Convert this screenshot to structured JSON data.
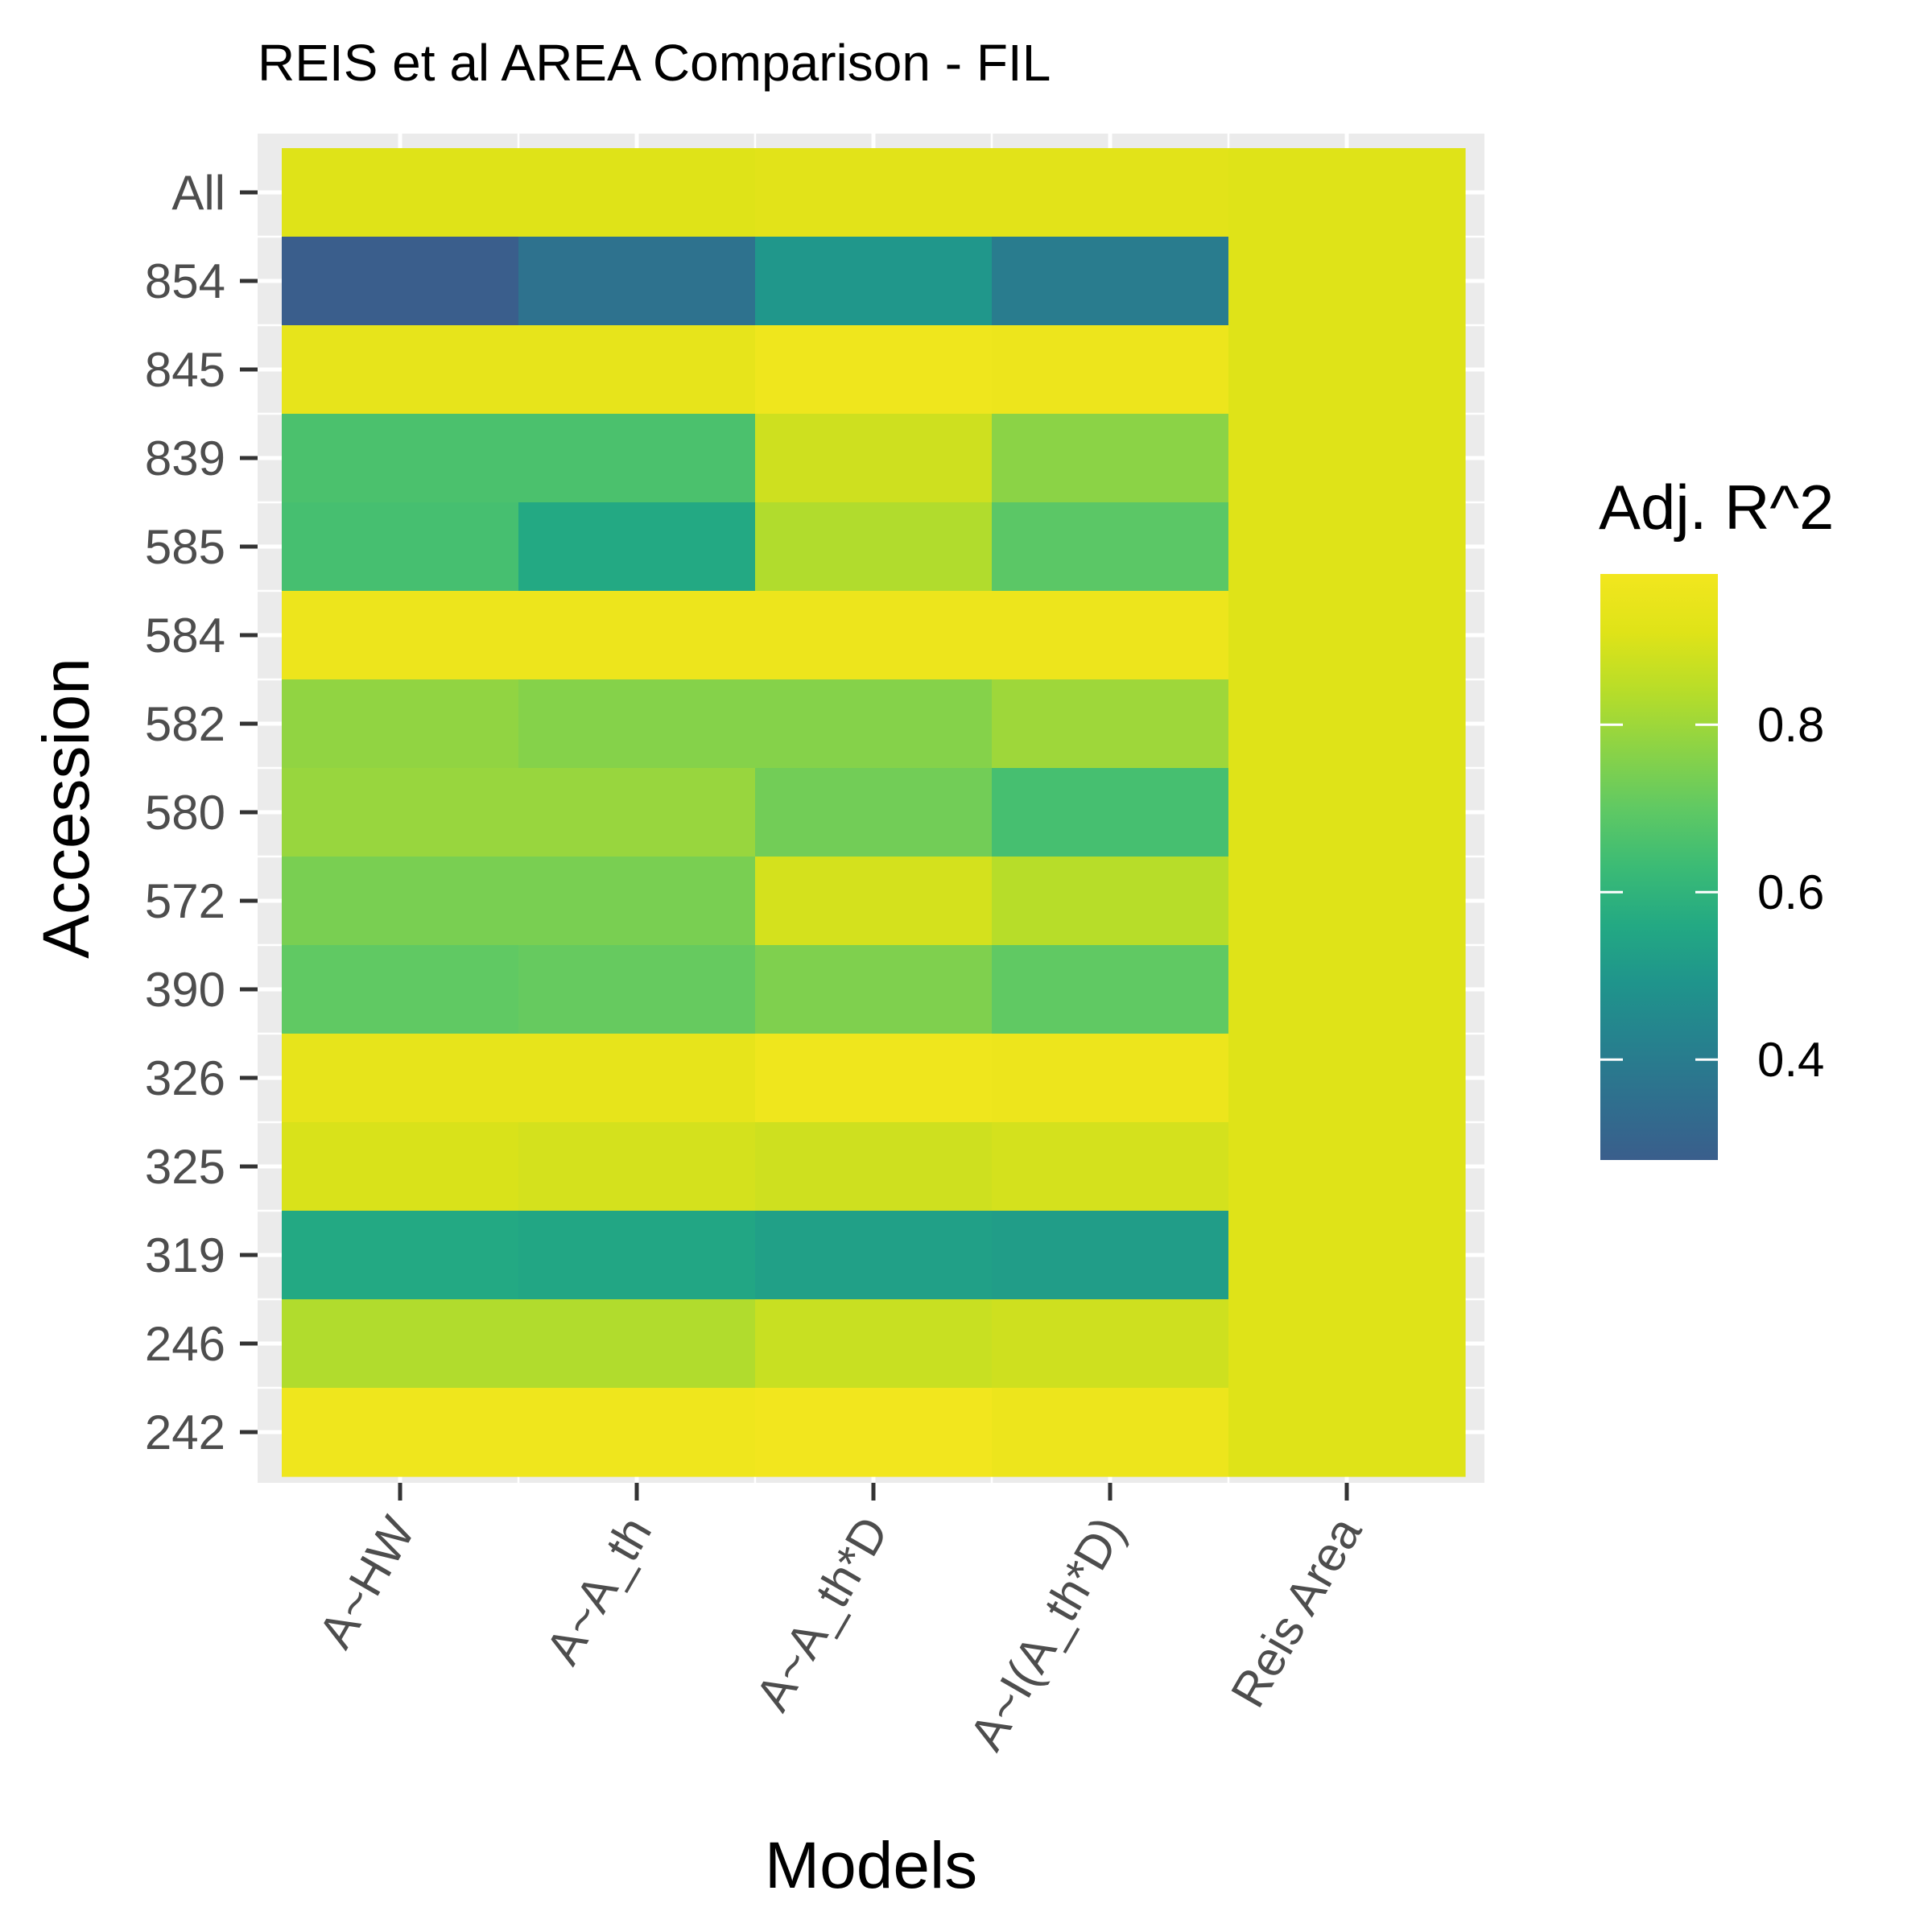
{
  "chart_data": {
    "type": "heatmap",
    "title": "REIS et al AREA Comparison - FIL",
    "xlabel": "Models",
    "ylabel": "Accession",
    "x_categories": [
      "A~HW",
      "A~A_th",
      "A~A_th*D",
      "A~I(A_th*D)",
      "Reis Area"
    ],
    "y_categories": [
      "All",
      "854",
      "845",
      "839",
      "585",
      "584",
      "582",
      "580",
      "572",
      "390",
      "326",
      "325",
      "319",
      "246",
      "242"
    ],
    "values": [
      [
        0.91,
        0.91,
        0.92,
        0.92,
        0.91
      ],
      [
        0.28,
        0.36,
        0.5,
        0.4,
        0.91
      ],
      [
        0.94,
        0.94,
        0.97,
        0.96,
        0.91
      ],
      [
        0.66,
        0.66,
        0.88,
        0.77,
        0.91
      ],
      [
        0.65,
        0.56,
        0.83,
        0.69,
        0.91
      ],
      [
        0.96,
        0.96,
        0.96,
        0.96,
        0.91
      ],
      [
        0.78,
        0.76,
        0.76,
        0.8,
        0.91
      ],
      [
        0.79,
        0.79,
        0.73,
        0.65,
        0.91
      ],
      [
        0.74,
        0.74,
        0.89,
        0.84,
        0.91
      ],
      [
        0.7,
        0.71,
        0.75,
        0.7,
        0.91
      ],
      [
        0.94,
        0.94,
        0.97,
        0.96,
        0.91
      ],
      [
        0.9,
        0.89,
        0.88,
        0.89,
        0.91
      ],
      [
        0.56,
        0.55,
        0.53,
        0.52,
        0.91
      ],
      [
        0.83,
        0.83,
        0.87,
        0.88,
        0.91
      ],
      [
        0.97,
        0.97,
        0.98,
        0.96,
        0.91
      ]
    ],
    "color_scale": {
      "name": "viridis",
      "domain": [
        0.28,
        0.98
      ],
      "stops": [
        "#3a5e8c",
        "#2f6f8e",
        "#26818e",
        "#1f948c",
        "#23a983",
        "#3bbb75",
        "#60c963",
        "#8bd346",
        "#b7dd29",
        "#dfe318",
        "#f2e61e"
      ]
    },
    "legend": {
      "title": "Adj. R^2",
      "ticks": [
        0.8,
        0.6,
        0.4
      ],
      "tick_labels": [
        "0.8",
        "0.6",
        "0.4"
      ],
      "placement": "right"
    },
    "panel_background": "#ebebeb",
    "grid": true
  }
}
